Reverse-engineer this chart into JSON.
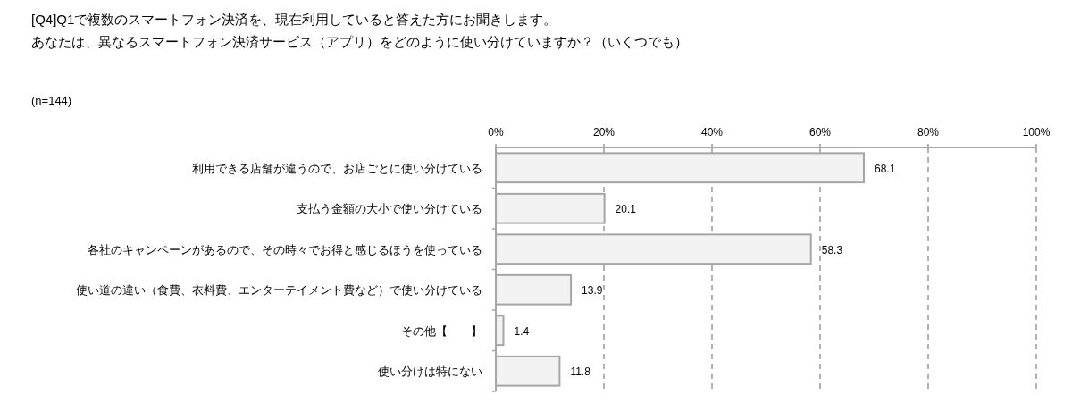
{
  "chart_data": {
    "type": "bar",
    "orientation": "horizontal",
    "title": "[Q4]Q1で複数のスマートフォン決済を、現在利用していると答えた方にお聞きします。",
    "subtitle": "あなたは、異なるスマートフォン決済サービス（アプリ）をどのように使い分けていますか？（いくつでも）",
    "annotations": [
      "(n=144)"
    ],
    "categories": [
      "利用できる店舗が違うので、お店ごとに使い分けている",
      "支払う金額の大小で使い分けている",
      "各社のキャンペーンがあるので、その時々でお得と感じるほうを使っている",
      "使い道の違い（食費、衣料費、エンターテイメント費など）で使い分けている",
      "その他【　　】",
      "使い分けは特にない"
    ],
    "values": [
      68.1,
      20.1,
      58.3,
      13.9,
      1.4,
      11.8
    ],
    "color": "#f2f2f2",
    "data_labels": true,
    "xlim": [
      0,
      100
    ],
    "xticks": [
      {
        "value": 0,
        "label": "0%"
      },
      {
        "value": 20,
        "label": "20%"
      },
      {
        "value": 40,
        "label": "40%"
      },
      {
        "value": 60,
        "label": "60%"
      },
      {
        "value": 80,
        "label": "80%"
      },
      {
        "value": 100,
        "label": "100%"
      }
    ],
    "grid": "x",
    "line_style": "dashed"
  }
}
